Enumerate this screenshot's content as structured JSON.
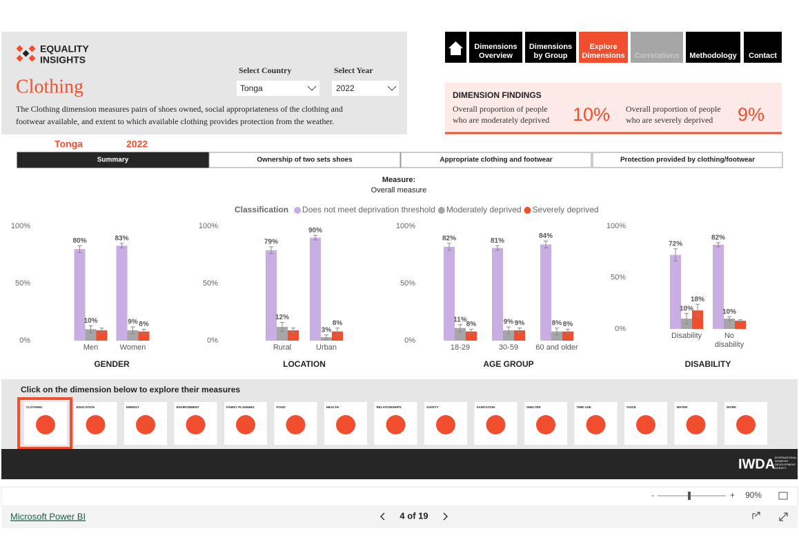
{
  "header": {
    "logo": [
      "EQUALITY",
      "INSIGHTS"
    ],
    "title": "Clothing",
    "description": [
      "The Clothing dimension measures pairs of shoes owned, social appropriateness of the clothing and",
      "footwear  available, and extent to which available clothing provides protection from the weather."
    ]
  },
  "filters": [
    {
      "label": "Select Country",
      "value": "Tonga"
    },
    {
      "label": "Select Year",
      "value": "2022"
    }
  ],
  "nav": [
    {
      "lines": []
    },
    {
      "lines": [
        "Dimensions",
        "Overview"
      ]
    },
    {
      "lines": [
        "Dimensions",
        "by Group"
      ]
    },
    {
      "lines": [
        "Explore",
        "Dimensions"
      ]
    },
    {
      "lines": [
        "Correlations"
      ]
    },
    {
      "lines": [
        "Methodology"
      ]
    },
    {
      "lines": [
        "Contact"
      ]
    }
  ],
  "findings": {
    "title": "DIMENSION FINDINGS",
    "items": [
      {
        "text": [
          "Overall proportion of people",
          "who are moderately deprived"
        ],
        "value": "10%"
      },
      {
        "text": [
          "Overall proportion of people",
          "who are severely deprived"
        ],
        "value": "9%"
      }
    ]
  },
  "selection": {
    "country": "Tonga",
    "year": "2022"
  },
  "tabs": [
    "Summary",
    "Ownership of two sets shoes",
    "Appropriate clothing and footwear",
    "Protection provided by clothing/footwear"
  ],
  "measure": {
    "label": "Measure:",
    "value": "Overall measure"
  },
  "legend": {
    "title": "Classification"
  },
  "chart_data": [
    {
      "type": "bar",
      "xlabel": "GENDER",
      "categories": [
        "Men",
        "Women"
      ],
      "ylim": [
        0,
        100
      ],
      "yticks": [
        {
          "value": 0,
          "label": "0%"
        },
        {
          "value": 50,
          "label": "50%"
        },
        {
          "value": 100,
          "label": "100%"
        }
      ],
      "series": [
        {
          "name": "Does not meet deprivation threshold",
          "color": "#c9aee3",
          "values": [
            80,
            83
          ],
          "value_labels": [
            "80%",
            "83%"
          ],
          "errors": [
            3,
            2
          ]
        },
        {
          "name": "Moderately deprived",
          "color": "#a6a6a6",
          "values": [
            10,
            9
          ],
          "value_labels": [
            "10%",
            "9%"
          ],
          "errors": [
            3,
            3
          ]
        },
        {
          "name": "Severely deprived",
          "color": "#f04e2e",
          "values": [
            9,
            8
          ],
          "value_labels": [
            null,
            "8%"
          ],
          "errors": [
            2,
            2
          ]
        }
      ]
    },
    {
      "type": "bar",
      "xlabel": "LOCATION",
      "categories": [
        "Rural",
        "Urban"
      ],
      "ylim": [
        0,
        100
      ],
      "yticks": [
        {
          "value": 0,
          "label": "0%"
        },
        {
          "value": 50,
          "label": "50%"
        },
        {
          "value": 100,
          "label": "100%"
        }
      ],
      "series": [
        {
          "name": "Does not meet deprivation threshold",
          "color": "#c9aee3",
          "values": [
            79,
            90
          ],
          "value_labels": [
            "79%",
            "90%"
          ],
          "errors": [
            3,
            2
          ]
        },
        {
          "name": "Moderately deprived",
          "color": "#a6a6a6",
          "values": [
            12,
            3
          ],
          "value_labels": [
            "12%",
            "3%"
          ],
          "errors": [
            4,
            2
          ]
        },
        {
          "name": "Severely deprived",
          "color": "#f04e2e",
          "values": [
            9,
            8
          ],
          "value_labels": [
            null,
            "8%"
          ],
          "errors": [
            2,
            3
          ]
        }
      ]
    },
    {
      "type": "bar",
      "xlabel": "AGE GROUP",
      "categories": [
        "18-29",
        "30-59",
        "60 and older"
      ],
      "ylim": [
        0,
        100
      ],
      "yticks": [
        {
          "value": 0,
          "label": "0%"
        },
        {
          "value": 50,
          "label": "50%"
        },
        {
          "value": 100,
          "label": "100%"
        }
      ],
      "series": [
        {
          "name": "Does not meet deprivation threshold",
          "color": "#c9aee3",
          "values": [
            82,
            81,
            84
          ],
          "value_labels": [
            "82%",
            "81%",
            "84%"
          ],
          "errors": [
            3,
            2,
            3
          ]
        },
        {
          "name": "Moderately deprived",
          "color": "#a6a6a6",
          "values": [
            11,
            9,
            8
          ],
          "value_labels": [
            "11%",
            "9%",
            "8%"
          ],
          "errors": [
            3,
            3,
            3
          ]
        },
        {
          "name": "Severely deprived",
          "color": "#f04e2e",
          "values": [
            8,
            9,
            8
          ],
          "value_labels": [
            "8%",
            "9%",
            "8%"
          ],
          "errors": [
            2,
            2,
            2
          ]
        }
      ]
    },
    {
      "type": "bar",
      "xlabel": "DISABILITY",
      "categories": [
        "Disability",
        "No disability"
      ],
      "ylim": [
        0,
        100
      ],
      "yticks": [
        {
          "value": 0,
          "label": "0%"
        },
        {
          "value": 50,
          "label": "50%"
        },
        {
          "value": 100,
          "label": "100%"
        }
      ],
      "series": [
        {
          "name": "Does not meet deprivation threshold",
          "color": "#c9aee3",
          "values": [
            72,
            82
          ],
          "value_labels": [
            "72%",
            "82%"
          ],
          "errors": [
            6,
            2
          ]
        },
        {
          "name": "Moderately deprived",
          "color": "#a6a6a6",
          "values": [
            10,
            10
          ],
          "value_labels": [
            "10%",
            "10%"
          ],
          "errors": [
            5,
            2
          ]
        },
        {
          "name": "Severely deprived",
          "color": "#f04e2e",
          "values": [
            18,
            8
          ],
          "value_labels": [
            "18%",
            null
          ],
          "errors": [
            6,
            1
          ]
        }
      ]
    }
  ],
  "dimensions": {
    "prompt": "Click on the dimension below to explore their measures",
    "items": [
      "CLOTHING",
      "EDUCATION",
      "ENERGY",
      "ENVIRONMENT",
      "FAMILY PLANNING",
      "FOOD",
      "HEALTH",
      "RELATIONSHIPS",
      "SAFETY",
      "SANITATION",
      "SHELTER",
      "TIME USE",
      "VOICE",
      "WATER",
      "WORK"
    ]
  },
  "footer": {
    "logo": "IWDA",
    "logo_sub": [
      "INTERNATIONAL",
      "WOMEN'S",
      "DEVELOPMENT",
      "AGENCY"
    ]
  },
  "powerbi": {
    "brand": "Microsoft Power BI",
    "page": "4 of 19",
    "zoom": "90%",
    "zoom_minus": "-",
    "zoom_plus": "+"
  }
}
